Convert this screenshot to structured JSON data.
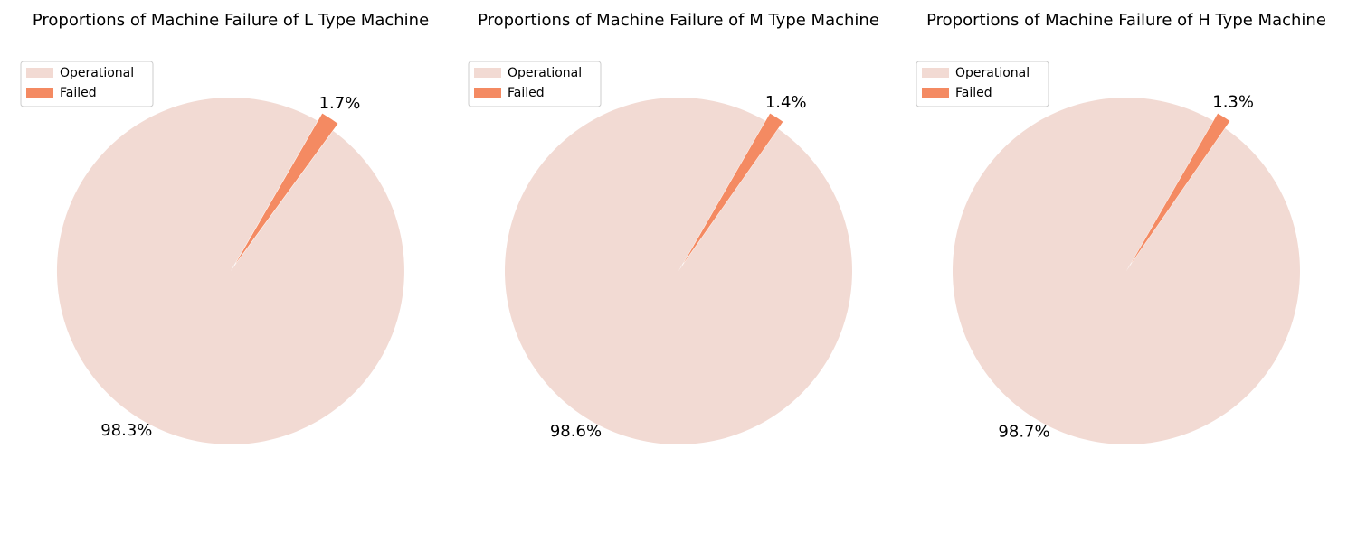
{
  "chart_data": [
    {
      "type": "pie",
      "title": "Proportions of Machine Failure of L Type Machine",
      "legend_position": "top-left",
      "slices": [
        {
          "label": "Operational",
          "value": 98.3,
          "display": "98.3%",
          "color": "#f2dad3",
          "explode": false
        },
        {
          "label": "Failed",
          "value": 1.7,
          "display": "1.7%",
          "color": "#f48a62",
          "explode": true
        }
      ]
    },
    {
      "type": "pie",
      "title": "Proportions of Machine Failure of M Type Machine",
      "legend_position": "top-left",
      "slices": [
        {
          "label": "Operational",
          "value": 98.6,
          "display": "98.6%",
          "color": "#f2dad3",
          "explode": false
        },
        {
          "label": "Failed",
          "value": 1.4,
          "display": "1.4%",
          "color": "#f48a62",
          "explode": true
        }
      ]
    },
    {
      "type": "pie",
      "title": "Proportions of Machine Failure of H Type Machine",
      "legend_position": "top-left",
      "slices": [
        {
          "label": "Operational",
          "value": 98.7,
          "display": "98.7%",
          "color": "#f2dad3",
          "explode": false
        },
        {
          "label": "Failed",
          "value": 1.3,
          "display": "1.3%",
          "color": "#f48a62",
          "explode": true
        }
      ]
    }
  ]
}
